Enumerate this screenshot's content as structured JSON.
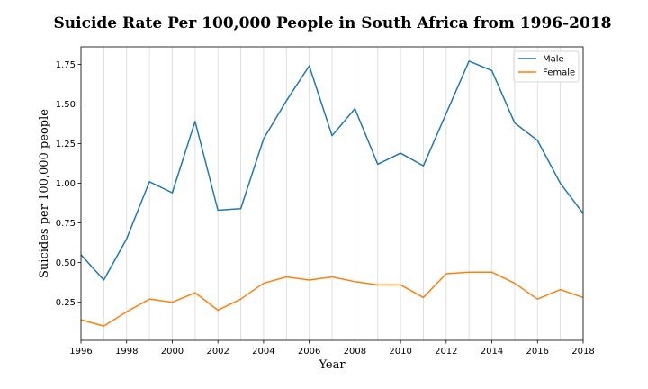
{
  "chart_data": {
    "type": "line",
    "title": "Suicide Rate Per 100,000 People in South Africa from 1996-2018",
    "xlabel": "Year",
    "ylabel": "Suicides per 100,000 people",
    "x": [
      1996,
      1997,
      1998,
      1999,
      2000,
      2001,
      2002,
      2003,
      2004,
      2005,
      2006,
      2007,
      2008,
      2009,
      2010,
      2011,
      2012,
      2013,
      2014,
      2015,
      2016,
      2017,
      2018
    ],
    "xlim": [
      1996,
      2018
    ],
    "ylim": [
      0.01,
      1.86
    ],
    "xticks": [
      1996,
      1998,
      2000,
      2002,
      2004,
      2006,
      2008,
      2010,
      2012,
      2014,
      2016,
      2018
    ],
    "yticks": [
      0.25,
      0.5,
      0.75,
      1.0,
      1.25,
      1.5,
      1.75
    ],
    "ytick_labels": [
      "0.25",
      "0.50",
      "0.75",
      "1.00",
      "1.25",
      "1.50",
      "1.75"
    ],
    "grid": "vertical",
    "legend_position": "top-right",
    "series": [
      {
        "name": "Male",
        "color": "#1f77b4",
        "values": [
          0.55,
          0.39,
          0.65,
          1.01,
          0.94,
          1.39,
          0.83,
          0.84,
          1.28,
          1.52,
          1.74,
          1.3,
          1.47,
          1.12,
          1.19,
          1.11,
          1.44,
          1.77,
          1.71,
          1.38,
          1.27,
          1.0,
          0.81
        ]
      },
      {
        "name": "Female",
        "color": "#ff7f0e",
        "values": [
          0.14,
          0.1,
          0.19,
          0.27,
          0.25,
          0.31,
          0.2,
          0.27,
          0.37,
          0.41,
          0.39,
          0.41,
          0.38,
          0.36,
          0.36,
          0.28,
          0.43,
          0.44,
          0.44,
          0.37,
          0.27,
          0.33,
          0.28
        ]
      }
    ]
  }
}
